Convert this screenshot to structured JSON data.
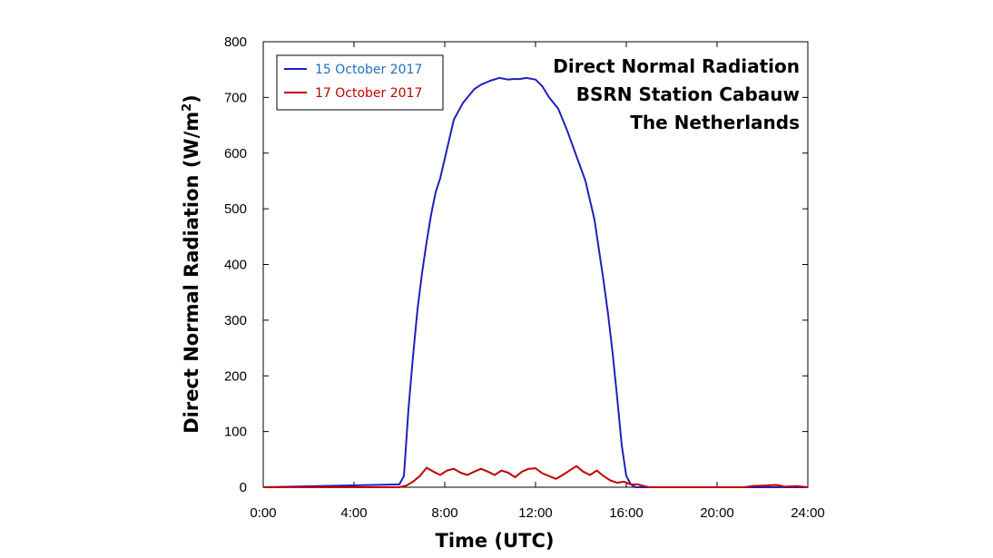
{
  "chart_data": {
    "type": "line",
    "title_lines": [
      "Direct Normal Radiation",
      "BSRN Station Cabauw",
      "The Netherlands"
    ],
    "xlabel": "Time (UTC)",
    "ylabel_main": "Direct Normal Radiation (W/m",
    "ylabel_sup": "2",
    "ylabel_close": ")",
    "xlim": [
      0,
      24
    ],
    "ylim": [
      0,
      800
    ],
    "xticks": [
      0,
      4,
      8,
      12,
      16,
      20,
      24
    ],
    "xtick_labels": [
      "0:00",
      "4:00",
      "8:00",
      "12:00",
      "16:00",
      "20:00",
      "24:00"
    ],
    "yticks": [
      0,
      100,
      200,
      300,
      400,
      500,
      600,
      700,
      800
    ],
    "ytick_labels": [
      "0",
      "100",
      "200",
      "300",
      "400",
      "500",
      "600",
      "700",
      "800"
    ],
    "grid": false,
    "legend_position": "top-left",
    "series": [
      {
        "name": "15 October 2017",
        "color": "#1f1fbf",
        "label_color": "#1f6fbf",
        "x": [
          0,
          6.0,
          6.2,
          6.4,
          6.6,
          6.8,
          7.0,
          7.2,
          7.4,
          7.6,
          7.8,
          8.0,
          8.2,
          8.4,
          8.6,
          8.8,
          9.0,
          9.3,
          9.6,
          10.0,
          10.4,
          10.8,
          11.0,
          11.3,
          11.6,
          12.0,
          12.3,
          12.6,
          13.0,
          13.4,
          13.8,
          14.2,
          14.6,
          15.0,
          15.2,
          15.4,
          15.6,
          15.8,
          16.0,
          16.2,
          16.4,
          16.6,
          16.8,
          17.0,
          24
        ],
        "y": [
          0,
          5,
          20,
          140,
          235,
          320,
          385,
          440,
          490,
          530,
          555,
          590,
          625,
          660,
          675,
          690,
          700,
          715,
          723,
          730,
          735,
          732,
          733,
          733,
          735,
          732,
          720,
          700,
          680,
          640,
          595,
          550,
          480,
          370,
          310,
          240,
          160,
          75,
          20,
          5,
          0,
          0,
          0,
          0,
          0
        ]
      },
      {
        "name": "17 October 2017",
        "color": "#c00000",
        "label_color": "#c00000",
        "x": [
          0,
          6.0,
          6.3,
          6.6,
          6.9,
          7.2,
          7.5,
          7.8,
          8.1,
          8.4,
          8.7,
          9.0,
          9.3,
          9.6,
          9.9,
          10.2,
          10.5,
          10.8,
          11.1,
          11.4,
          11.7,
          12.0,
          12.3,
          12.6,
          12.9,
          13.2,
          13.5,
          13.8,
          14.1,
          14.4,
          14.7,
          15.0,
          15.3,
          15.6,
          15.9,
          16.2,
          16.5,
          16.8,
          17.0,
          21.2,
          21.5,
          22.0,
          22.6,
          23.0,
          23.5,
          24
        ],
        "y": [
          0,
          0,
          3,
          10,
          20,
          35,
          28,
          22,
          30,
          33,
          26,
          22,
          28,
          33,
          28,
          22,
          30,
          26,
          18,
          28,
          33,
          34,
          25,
          20,
          15,
          22,
          30,
          38,
          28,
          22,
          30,
          20,
          12,
          8,
          10,
          5,
          5,
          2,
          0,
          0,
          2,
          3,
          4,
          1,
          2,
          0
        ]
      }
    ]
  }
}
